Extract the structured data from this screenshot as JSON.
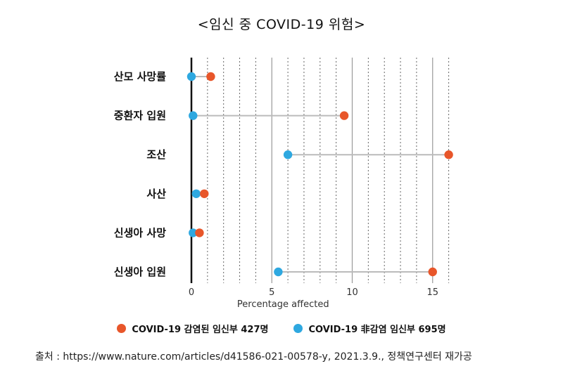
{
  "title": "<임신 중 COVID-19 위험>",
  "source": "출처 : https://www.nature.com/articles/d41586-021-00578-y, 2021.3.9., 정책연구센터 재가공",
  "chart_data": {
    "type": "dot",
    "categories": [
      "산모 사망률",
      "중환자 입원",
      "조산",
      "사산",
      "신생아 사망",
      "신생아 입원"
    ],
    "xlabel": "Percentage affected",
    "xlim": [
      0,
      16
    ],
    "xticks": [
      0,
      5,
      10,
      15
    ],
    "grid": "dotted vertical lines every 1 unit, solid at 5, 10, 15",
    "legend_position": "bottom",
    "series": [
      {
        "name": "COVID-19 감염된 임신부 427명",
        "color": "#E8562A",
        "values": [
          1.2,
          9.5,
          16.0,
          0.8,
          0.5,
          15.0
        ]
      },
      {
        "name": "COVID-19 非감염 임신부 695명",
        "color": "#2EA8E0",
        "values": [
          0.0,
          0.1,
          6.0,
          0.3,
          0.1,
          5.4
        ]
      }
    ]
  }
}
